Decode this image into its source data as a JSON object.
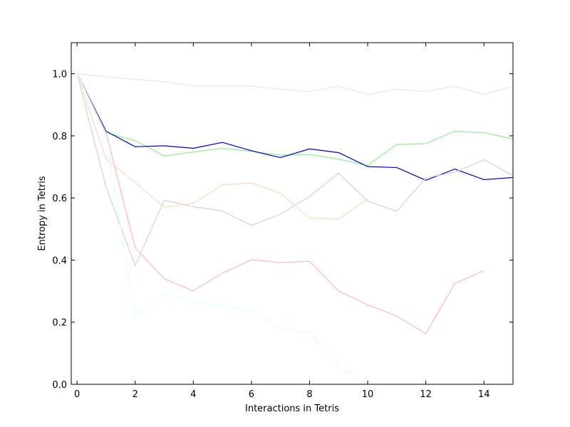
{
  "chart_data": {
    "type": "line",
    "title": "",
    "xlabel": "Interactions in Tetris",
    "ylabel": "Entropy in Tetris",
    "xlim": [
      -0.2,
      15
    ],
    "ylim": [
      0.0,
      1.1
    ],
    "xticks": [
      0,
      2,
      4,
      6,
      8,
      10,
      12,
      14
    ],
    "yticks": [
      0.0,
      0.2,
      0.4,
      0.6,
      0.8,
      1.0
    ],
    "xtick_labels": [
      "0",
      "2",
      "4",
      "6",
      "8",
      "10",
      "12",
      "14"
    ],
    "ytick_labels": [
      "0.0",
      "0.2",
      "0.4",
      "0.6",
      "0.8",
      "1.0"
    ],
    "grid": false,
    "legend": "none",
    "series": [
      {
        "color": "#e6e6fa",
        "x": [
          0,
          1,
          2,
          3,
          4,
          5,
          6,
          7,
          8,
          9,
          10,
          11,
          12,
          13,
          14,
          15
        ],
        "y": [
          1.0,
          0.99,
          0.982,
          0.975,
          0.96,
          0.96,
          0.96,
          0.95,
          0.942,
          0.96,
          0.933,
          0.95,
          0.943,
          0.96,
          0.933,
          0.96
        ]
      },
      {
        "color": "#90ee90",
        "x": [
          0,
          1,
          2,
          3,
          4,
          5,
          6,
          7,
          8,
          9,
          10,
          11,
          12,
          13,
          14,
          15
        ],
        "y": [
          1.0,
          0.81,
          0.785,
          0.735,
          0.748,
          0.76,
          0.75,
          0.738,
          0.74,
          0.725,
          0.705,
          0.772,
          0.775,
          0.815,
          0.81,
          0.79
        ]
      },
      {
        "color": "#0000cd",
        "x": [
          0,
          1,
          2,
          3,
          4,
          5,
          6,
          7,
          8,
          9,
          10,
          11,
          12,
          13,
          14,
          15
        ],
        "y": [
          1.0,
          0.815,
          0.765,
          0.768,
          0.76,
          0.779,
          0.752,
          0.73,
          0.758,
          0.746,
          0.701,
          0.698,
          0.657,
          0.693,
          0.659,
          0.666
        ]
      },
      {
        "color": "#d3d3d3",
        "x": [
          0,
          1,
          2,
          3,
          4,
          5,
          6,
          7,
          8,
          9,
          10,
          11,
          12,
          13,
          14,
          15
        ],
        "y": [
          1.0,
          0.635,
          0.382,
          0.593,
          0.572,
          0.558,
          0.512,
          0.548,
          0.605,
          0.68,
          0.59,
          0.557,
          0.665,
          0.683,
          0.723,
          0.672
        ]
      },
      {
        "color": "#ffdab9",
        "x": [
          0,
          1,
          2,
          3,
          4,
          5,
          6,
          7,
          8,
          9,
          10
        ],
        "y": [
          1.0,
          0.725,
          0.65,
          0.57,
          0.583,
          0.642,
          0.648,
          0.615,
          0.536,
          0.532,
          0.597
        ]
      },
      {
        "color": "#ffb6c1",
        "x": [
          0,
          1,
          2,
          3,
          4,
          5,
          6,
          7,
          8,
          9,
          10,
          11,
          12,
          13,
          14
        ],
        "y": [
          1.0,
          0.81,
          0.44,
          0.34,
          0.301,
          0.358,
          0.401,
          0.392,
          0.396,
          0.3,
          0.256,
          0.22,
          0.163,
          0.325,
          0.366
        ]
      },
      {
        "color": "#e0ffff",
        "x": [
          0,
          1,
          2,
          3,
          4,
          5,
          6,
          7,
          8,
          9,
          10
        ],
        "y": [
          1.0,
          0.8,
          0.217,
          0.29,
          0.267,
          0.252,
          0.238,
          0.178,
          0.168,
          0.06,
          0.0
        ]
      }
    ]
  }
}
